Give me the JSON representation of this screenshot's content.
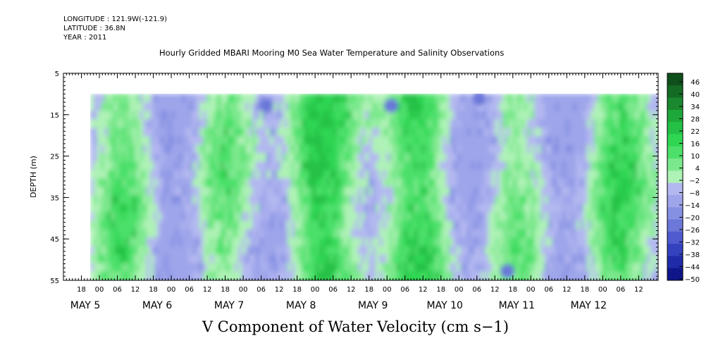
{
  "meta": {
    "longitude": "LONGITUDE : 121.9W(-121.9)",
    "latitude": "LATITUDE : 36.8N",
    "year": "YEAR : 2011"
  },
  "chart_data": {
    "type": "heatmap",
    "title": "Hourly Gridded MBARI Mooring M0 Sea Water Temperature and Salinity Observations",
    "xlabel": "V Component of Water Velocity (cm s−1)",
    "ylabel": "DEPTH (m)",
    "y_range": [
      5,
      55
    ],
    "y_ticks": [
      5,
      15,
      25,
      35,
      45,
      55
    ],
    "y_axis_reversed": true,
    "data_depth_range": [
      10,
      55
    ],
    "x_hour_ticks": [
      "18",
      "00",
      "06",
      "12",
      "18",
      "00",
      "06",
      "12",
      "18",
      "00",
      "06",
      "12",
      "18",
      "00",
      "06",
      "12",
      "18",
      "00",
      "06",
      "12",
      "18",
      "00",
      "06",
      "12",
      "18",
      "00",
      "06",
      "12",
      "18",
      "00",
      "06",
      "12"
    ],
    "x_day_labels": [
      "MAY  5",
      "MAY  6",
      "MAY  7",
      "MAY  8",
      "MAY  9",
      "MAY 10",
      "MAY 11",
      "MAY 12"
    ],
    "colorbar": {
      "levels": [
        "46",
        "40",
        "34",
        "28",
        "22",
        "16",
        "10",
        "4",
        "−2",
        "−8",
        "−14",
        "−20",
        "−26",
        "−32",
        "−38",
        "−44",
        "−50"
      ],
      "colors_high_to_low": [
        "#0f4f1c",
        "#146b24",
        "#19882e",
        "#1fa83a",
        "#25c146",
        "#2fd652",
        "#4ce06a",
        "#7ce88d",
        "#aef2b6",
        "#b3b8f0",
        "#9ea5ea",
        "#8590e2",
        "#6b77d9",
        "#4f5bce",
        "#3542bf",
        "#1f2ba8",
        "#10168a"
      ]
    },
    "grid": false
  }
}
